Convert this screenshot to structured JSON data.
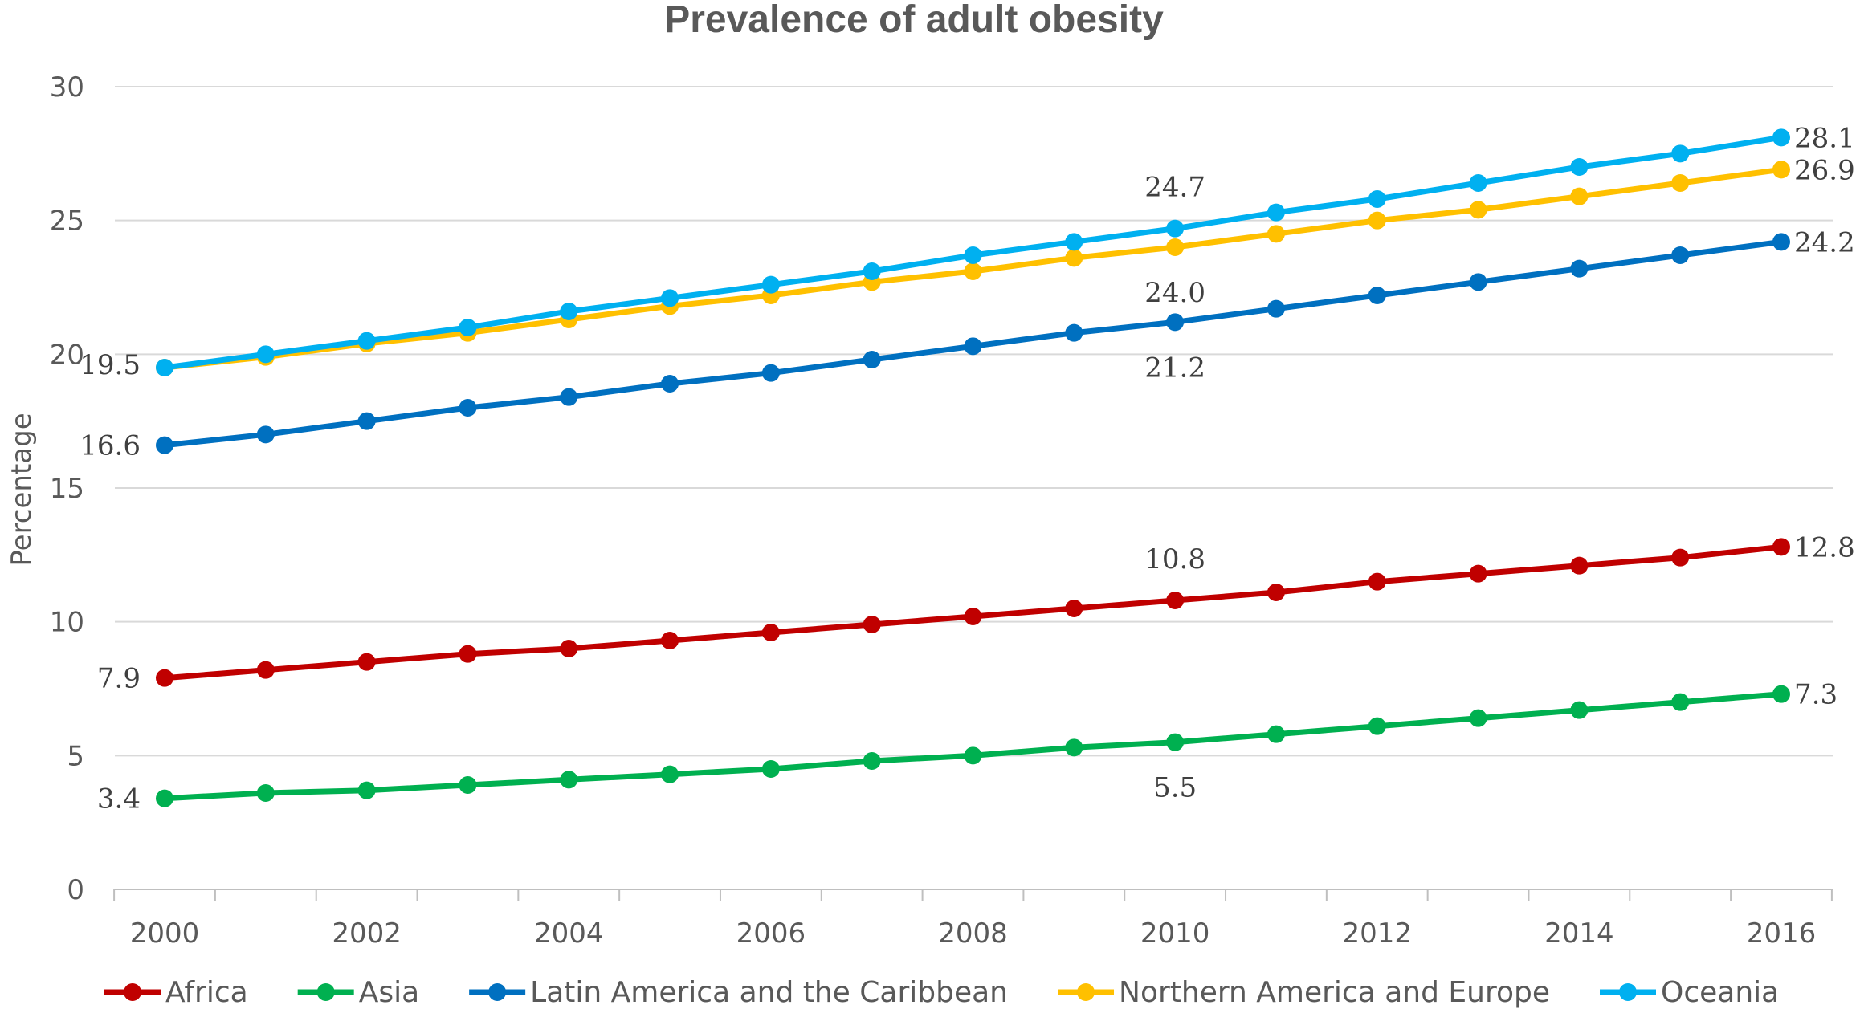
{
  "chart_data": {
    "type": "line",
    "title": "Prevalence of adult obesity",
    "xlabel": "",
    "ylabel": "Percentage",
    "x": [
      2000,
      2001,
      2002,
      2003,
      2004,
      2005,
      2006,
      2007,
      2008,
      2009,
      2010,
      2011,
      2012,
      2013,
      2014,
      2015,
      2016
    ],
    "x_tick_labels": [
      "2000",
      "2002",
      "2004",
      "2006",
      "2008",
      "2010",
      "2012",
      "2014",
      "2016"
    ],
    "y_ticks": [
      0,
      5,
      10,
      15,
      20,
      25,
      30
    ],
    "ylim": [
      0,
      30
    ],
    "grid": true,
    "legend_position": "bottom",
    "series": [
      {
        "name": "Africa",
        "color": "#C00000",
        "values": [
          7.9,
          8.2,
          8.5,
          8.8,
          9.0,
          9.3,
          9.6,
          9.9,
          10.2,
          10.5,
          10.8,
          11.1,
          11.5,
          11.8,
          12.1,
          12.4,
          12.8
        ],
        "labels": [
          {
            "index": 0,
            "text": "7.9",
            "pos": "left"
          },
          {
            "index": 10,
            "text": "10.8",
            "pos": "above"
          },
          {
            "index": 16,
            "text": "12.8",
            "pos": "right"
          }
        ]
      },
      {
        "name": "Asia",
        "color": "#00B050",
        "values": [
          3.4,
          3.6,
          3.7,
          3.9,
          4.1,
          4.3,
          4.5,
          4.8,
          5.0,
          5.3,
          5.5,
          5.8,
          6.1,
          6.4,
          6.7,
          7.0,
          7.3
        ],
        "labels": [
          {
            "index": 0,
            "text": "3.4",
            "pos": "left"
          },
          {
            "index": 10,
            "text": "5.5",
            "pos": "below"
          },
          {
            "index": 16,
            "text": "7.3",
            "pos": "right"
          }
        ]
      },
      {
        "name": "Latin America and the Caribbean",
        "color": "#0070C0",
        "values": [
          16.6,
          17.0,
          17.5,
          18.0,
          18.4,
          18.9,
          19.3,
          19.8,
          20.3,
          20.8,
          21.2,
          21.7,
          22.2,
          22.7,
          23.2,
          23.7,
          24.2
        ],
        "labels": [
          {
            "index": 0,
            "text": "16.6",
            "pos": "left"
          },
          {
            "index": 10,
            "text": "21.2",
            "pos": "below"
          },
          {
            "index": 16,
            "text": "24.2",
            "pos": "right"
          }
        ]
      },
      {
        "name": "Northern America and Europe",
        "color": "#FFC000",
        "values": [
          19.5,
          19.9,
          20.4,
          20.8,
          21.3,
          21.8,
          22.2,
          22.7,
          23.1,
          23.6,
          24.0,
          24.5,
          25.0,
          25.4,
          25.9,
          26.4,
          26.9
        ],
        "labels": [
          {
            "index": 10,
            "text": "24.0",
            "pos": "below-far"
          },
          {
            "index": 16,
            "text": "26.9",
            "pos": "right"
          }
        ]
      },
      {
        "name": "Oceania",
        "color": "#00B0F0",
        "values": [
          19.5,
          20.0,
          20.5,
          21.0,
          21.6,
          22.1,
          22.6,
          23.1,
          23.7,
          24.2,
          24.7,
          25.3,
          25.8,
          26.4,
          27.0,
          27.5,
          28.1
        ],
        "labels": [
          {
            "index": 0,
            "text": "19.5",
            "pos": "left-up"
          },
          {
            "index": 10,
            "text": "24.7",
            "pos": "above-far"
          },
          {
            "index": 16,
            "text": "28.1",
            "pos": "right"
          }
        ]
      }
    ]
  }
}
